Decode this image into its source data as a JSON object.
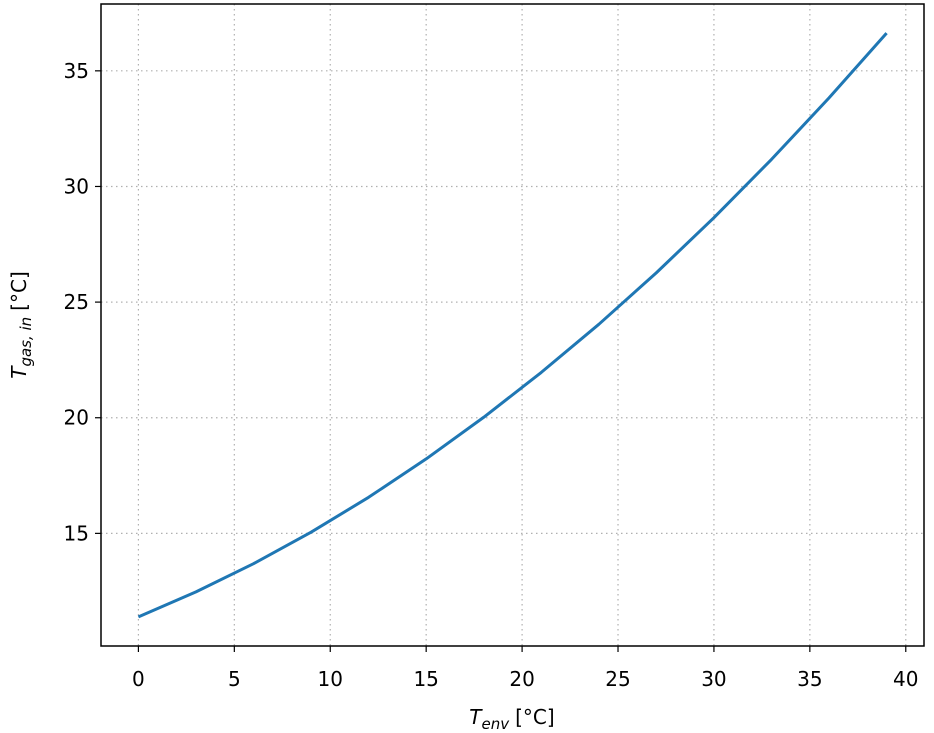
{
  "chart_data": {
    "type": "line",
    "xlabel": {
      "main": "T",
      "sub": "env",
      "unit": "[°C]"
    },
    "ylabel": {
      "main": "T",
      "sub": "gas, in",
      "unit": "[°C]"
    },
    "x": [
      0,
      3,
      6,
      9,
      12,
      15,
      18,
      21,
      24,
      27,
      30,
      33,
      36,
      39
    ],
    "series": [
      {
        "color": "#1f77b4",
        "values": [
          11.39,
          12.47,
          13.69,
          15.05,
          16.56,
          18.22,
          20.02,
          21.96,
          24.04,
          26.27,
          28.65,
          31.17,
          33.83,
          36.63
        ]
      }
    ],
    "xlim": [
      -1.95,
      40.95
    ],
    "xticks": [
      0,
      5,
      10,
      15,
      20,
      25,
      30,
      35,
      40
    ],
    "ylim": [
      10.13,
      37.89
    ],
    "yticks": [
      15,
      20,
      25,
      30,
      35
    ],
    "grid": true
  }
}
